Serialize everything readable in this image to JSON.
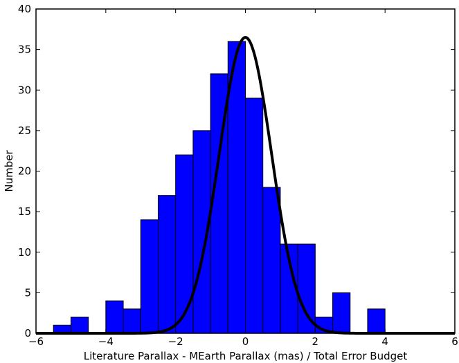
{
  "chart_data": {
    "type": "bar",
    "title": "",
    "xlabel": "Literature Parallax - MEarth Parallax (mas) / Total Error Budget",
    "ylabel": "Number",
    "xlim": [
      -6,
      6
    ],
    "ylim": [
      0,
      40
    ],
    "xticks": [
      -6,
      -4,
      -2,
      0,
      2,
      4,
      6
    ],
    "xtick_labels": [
      "−6",
      "−4",
      "−2",
      "0",
      "2",
      "4",
      "6"
    ],
    "yticks": [
      0,
      5,
      10,
      15,
      20,
      25,
      30,
      35,
      40
    ],
    "ytick_labels": [
      "0",
      "5",
      "10",
      "15",
      "20",
      "25",
      "30",
      "35",
      "40"
    ],
    "bins": [
      {
        "x0": -5.5,
        "x1": -5.0,
        "count": 1
      },
      {
        "x0": -5.0,
        "x1": -4.5,
        "count": 2
      },
      {
        "x0": -4.5,
        "x1": -4.0,
        "count": 0
      },
      {
        "x0": -4.0,
        "x1": -3.5,
        "count": 4
      },
      {
        "x0": -3.5,
        "x1": -3.0,
        "count": 3
      },
      {
        "x0": -3.0,
        "x1": -2.5,
        "count": 14
      },
      {
        "x0": -2.5,
        "x1": -2.0,
        "count": 17
      },
      {
        "x0": -2.0,
        "x1": -1.5,
        "count": 22
      },
      {
        "x0": -1.5,
        "x1": -1.0,
        "count": 25
      },
      {
        "x0": -1.0,
        "x1": -0.5,
        "count": 32
      },
      {
        "x0": -0.5,
        "x1": 0.0,
        "count": 36
      },
      {
        "x0": 0.0,
        "x1": 0.5,
        "count": 29
      },
      {
        "x0": 0.5,
        "x1": 1.0,
        "count": 18
      },
      {
        "x0": 1.0,
        "x1": 1.5,
        "count": 11
      },
      {
        "x0": 1.5,
        "x1": 2.0,
        "count": 11
      },
      {
        "x0": 2.0,
        "x1": 2.5,
        "count": 2
      },
      {
        "x0": 2.5,
        "x1": 3.0,
        "count": 5
      },
      {
        "x0": 3.0,
        "x1": 3.5,
        "count": 0
      },
      {
        "x0": 3.5,
        "x1": 4.0,
        "count": 3
      }
    ],
    "fit_curve": {
      "type": "gaussian",
      "amplitude": 36.5,
      "mean": 0.0,
      "sigma": 0.75
    },
    "colors": {
      "bars": "#0000ff",
      "bar_edge": "#000000",
      "curve": "#000000"
    },
    "grid": false
  }
}
